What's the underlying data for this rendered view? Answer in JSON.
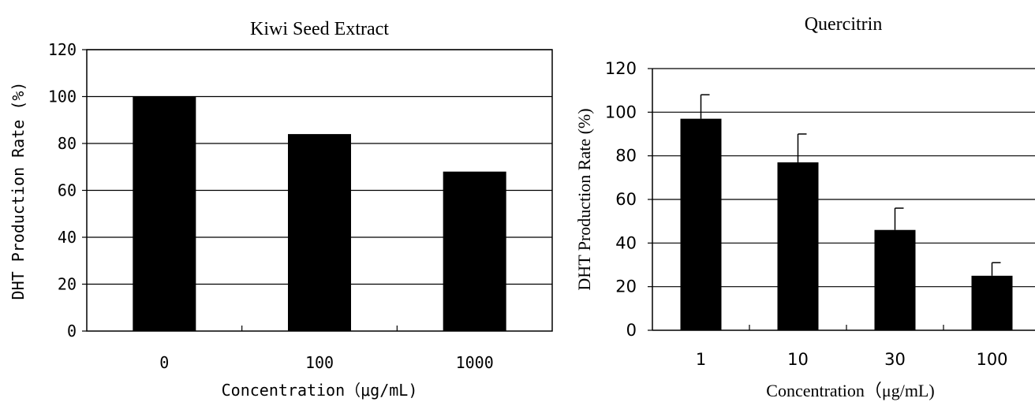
{
  "chart_data": [
    {
      "type": "bar",
      "title": "Kiwi Seed Extract",
      "xlabel": "Concentration（μg/mL)",
      "ylabel": "DHT Production Rate (%)",
      "categories": [
        "0",
        "100",
        "1000"
      ],
      "values": [
        100,
        84,
        68
      ],
      "ylim": [
        0,
        120
      ],
      "yticks": [
        "0",
        "20",
        "40",
        "60",
        "80",
        "100",
        "120"
      ],
      "grid": true,
      "legend": "none",
      "bar_color": "#000000"
    },
    {
      "type": "bar",
      "title": "Quercitrin",
      "xlabel": "Concentration（μg/mL)",
      "ylabel": "DHT Production Rate (%)",
      "categories": [
        "1",
        "10",
        "30",
        "100"
      ],
      "values": [
        97,
        77,
        46,
        25
      ],
      "errors": [
        11,
        13,
        10,
        6
      ],
      "ylim": [
        0,
        120
      ],
      "yticks": [
        "0",
        "20",
        "40",
        "60",
        "80",
        "100",
        "120"
      ],
      "grid": true,
      "legend": "none",
      "bar_color": "#000000"
    }
  ]
}
